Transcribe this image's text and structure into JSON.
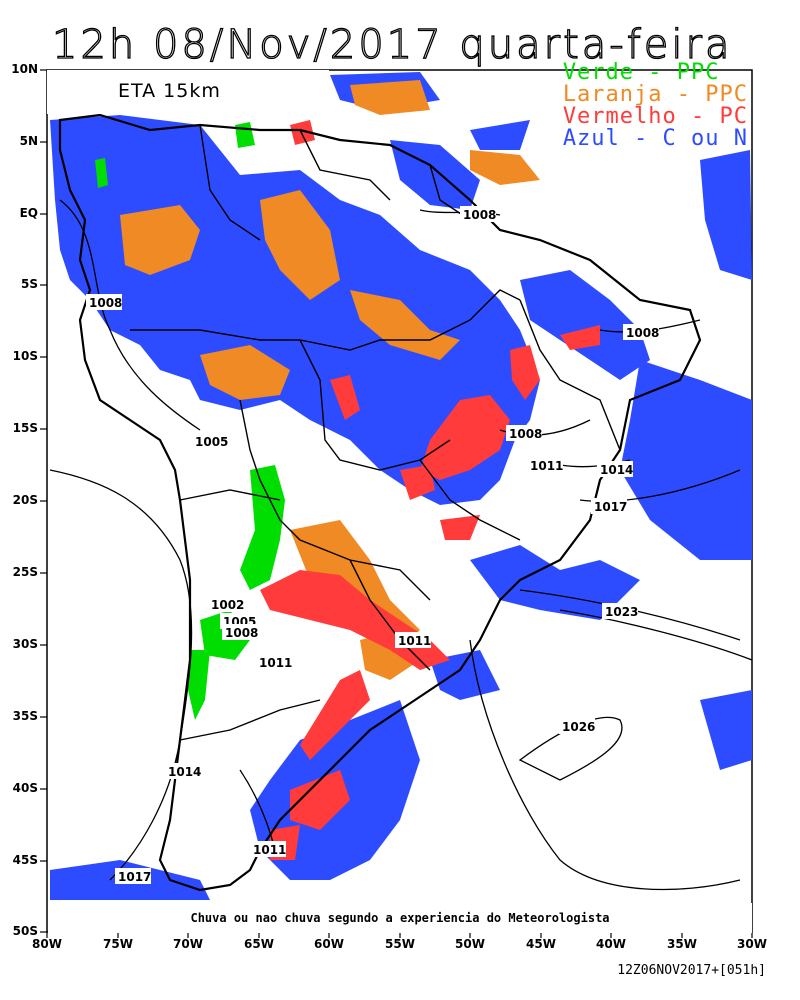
{
  "title": "12h 08/Nov/2017 quarta-feira",
  "model_label": "ETA 15km",
  "legend": [
    {
      "text": "Verde - PPC",
      "color": "#00dd00"
    },
    {
      "text": "Laranja - PPC",
      "color": "#f08a24"
    },
    {
      "text": "Vermelho - PC",
      "color": "#ff3b3b"
    },
    {
      "text": "Azul - C ou N",
      "color": "#2e4cff"
    }
  ],
  "lat_labels": [
    "10N",
    "5N",
    "EQ",
    "5S",
    "10S",
    "15S",
    "20S",
    "25S",
    "30S",
    "35S",
    "40S",
    "45S",
    "50S"
  ],
  "lon_labels": [
    "80W",
    "75W",
    "70W",
    "65W",
    "60W",
    "55W",
    "50W",
    "45W",
    "40W",
    "35W",
    "30W"
  ],
  "isobar_labels": [
    "1008",
    "1008",
    "1008",
    "1005",
    "1008",
    "1011",
    "1014",
    "1017",
    "1002",
    "1005",
    "1008",
    "1011",
    "1011",
    "1023",
    "1026",
    "1014",
    "1011",
    "1017"
  ],
  "caption": "Chuva ou nao chuva segundo a experiencia do Meteorologista",
  "footer": "12Z06NOV2017+[051h]"
}
